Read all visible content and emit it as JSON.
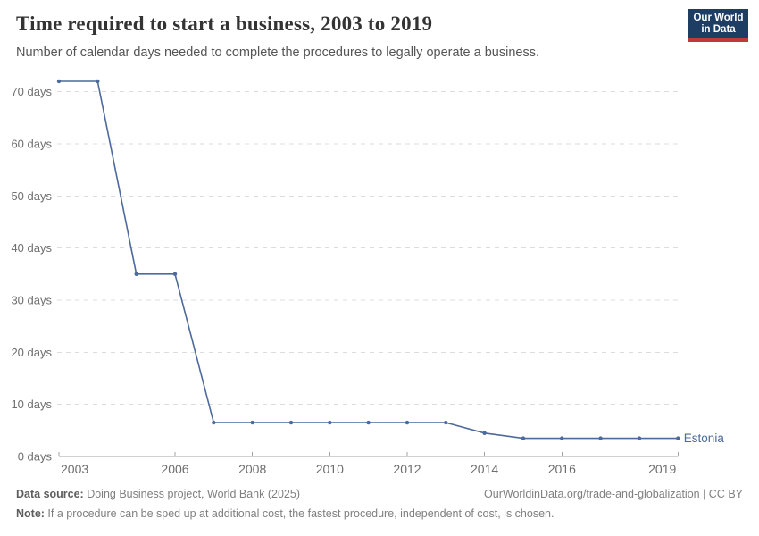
{
  "header": {
    "title": "Time required to start a business, 2003 to 2019",
    "subtitle": "Number of calendar days needed to complete the procedures to legally operate a business."
  },
  "logo": {
    "line1": "Our World",
    "line2": "in Data",
    "background_color": "#1d3d63",
    "stripe_color": "#c03a3a"
  },
  "chart_data": {
    "type": "line",
    "title": "Time required to start a business, 2003 to 2019",
    "xlabel": "",
    "ylabel": "",
    "x": [
      2003,
      2004,
      2005,
      2006,
      2007,
      2008,
      2009,
      2010,
      2011,
      2012,
      2013,
      2014,
      2015,
      2016,
      2017,
      2018,
      2019
    ],
    "series": [
      {
        "name": "Estonia",
        "color": "#4C6A9C",
        "values": [
          72,
          72,
          35,
          35,
          6.5,
          6.5,
          6.5,
          6.5,
          6.5,
          6.5,
          6.5,
          4.5,
          3.5,
          3.5,
          3.5,
          3.5,
          3.5
        ]
      }
    ],
    "ylim": [
      0,
      72
    ],
    "yticks": [
      0,
      10,
      20,
      30,
      40,
      50,
      60,
      70
    ],
    "ytick_suffix": " days",
    "xticks": [
      2003,
      2006,
      2008,
      2010,
      2012,
      2014,
      2016,
      2019
    ],
    "grid": "horizontal-dashed",
    "legend_position": "end-of-line-label"
  },
  "colors": {
    "line": "#4C6A9C",
    "grid": "#dcdcdc",
    "axis_line": "#a3a3a3",
    "axis_text": "#6e6e6e"
  },
  "footer": {
    "datasource_label": "Data source:",
    "datasource_text": " Doing Business project, World Bank (2025)",
    "attribution": "OurWorldinData.org/trade-and-globalization | CC BY",
    "note_label": "Note:",
    "note_text": " If a procedure can be sped up at additional cost, the fastest procedure, independent of cost, is chosen."
  }
}
